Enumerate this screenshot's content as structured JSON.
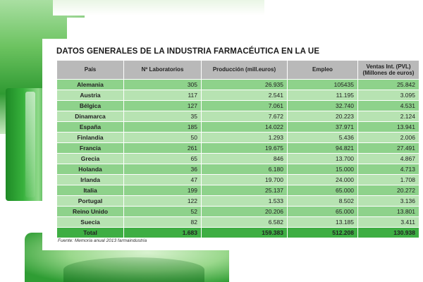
{
  "title": "DATOS GENERALES DE LA INDUSTRIA FARMACÉUTICA EN LA UE",
  "columns": [
    "País",
    "Nº Laboratorios",
    "Producción (mill.euros)",
    "Empleo",
    "Ventas Int. (PVL)",
    "(Millones de euros)"
  ],
  "rows": [
    {
      "country": "Alemania",
      "labs": "305",
      "production": "26.935",
      "employment": "105435",
      "sales": "25.842"
    },
    {
      "country": "Austria",
      "labs": "117",
      "production": "2.541",
      "employment": "11.195",
      "sales": "3.095"
    },
    {
      "country": "Bélgica",
      "labs": "127",
      "production": "7.061",
      "employment": "32.740",
      "sales": "4.531"
    },
    {
      "country": "Dinamarca",
      "labs": "35",
      "production": "7.672",
      "employment": "20.223",
      "sales": "2.124"
    },
    {
      "country": "España",
      "labs": "185",
      "production": "14.022",
      "employment": "37.971",
      "sales": "13.941"
    },
    {
      "country": "Finlandia",
      "labs": "50",
      "production": "1.293",
      "employment": "5.436",
      "sales": "2.006"
    },
    {
      "country": "Francia",
      "labs": "261",
      "production": "19.675",
      "employment": "94.821",
      "sales": "27.491"
    },
    {
      "country": "Grecia",
      "labs": "65",
      "production": "846",
      "employment": "13.700",
      "sales": "4.867"
    },
    {
      "country": "Holanda",
      "labs": "36",
      "production": "6.180",
      "employment": "15.000",
      "sales": "4.713"
    },
    {
      "country": "Irlanda",
      "labs": "47",
      "production": "19.700",
      "employment": "24.000",
      "sales": "1.708"
    },
    {
      "country": "Italia",
      "labs": "199",
      "production": "25.137",
      "employment": "65.000",
      "sales": "20.272"
    },
    {
      "country": "Portugal",
      "labs": "122",
      "production": "1.533",
      "employment": "8.502",
      "sales": "3.136"
    },
    {
      "country": "Reino Unido",
      "labs": "52",
      "production": "20.206",
      "employment": "65.000",
      "sales": "13.801"
    },
    {
      "country": "Suecia",
      "labs": "82",
      "production": "6.582",
      "employment": "13.185",
      "sales": "3.411"
    }
  ],
  "total": {
    "country": "Total",
    "labs": "1.683",
    "production": "159.383",
    "employment": "512.208",
    "sales": "130.938"
  },
  "source": "Fuente: Memoria anual 2013 farmaindustria",
  "colors": {
    "header_bg": "#b9b9b9",
    "row_dark": "#8ed28b",
    "row_light": "#b7e3b2",
    "total_bg": "#3eae43",
    "decor_green": "#2f9a32"
  }
}
